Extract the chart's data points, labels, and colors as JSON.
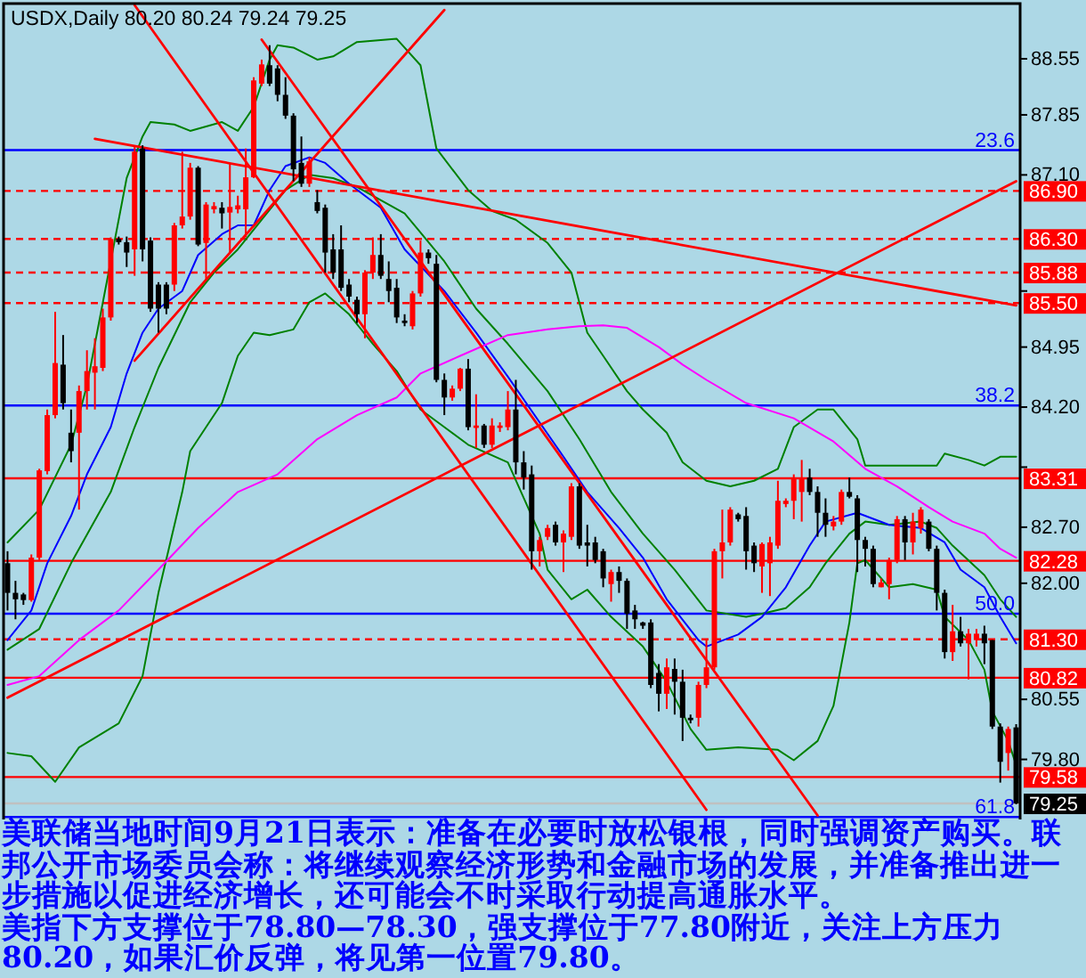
{
  "chart_data": {
    "type": "candlestick",
    "title": "USDX,Daily  80.20 80.24 79.24 79.25",
    "annotations": [
      "美联储当地时间9月21日表示：准备在必要时放松银根，同时强调资产购买。联邦公开市场委员会称：将继续观察经济形势和金融市场的发展，并准备推出进一步措施以促进经济增长，还可能会不时采取行动提高通胀水平。",
      "美指下方支撑位于78.80—78.30，强支撑位于77.80附近，关注上方压力80.20，如果汇价反弹，将见第一位置79.80。",
      {
        "text": "23.6",
        "y": 87.41
      },
      {
        "text": "38.2",
        "y": 84.22
      },
      {
        "text": "50.0",
        "y": 81.62
      },
      {
        "text": "61.8",
        "y": 79.08
      }
    ],
    "categories": [
      null,
      null,
      null,
      null,
      null,
      null,
      null,
      null,
      null,
      null,
      null,
      null,
      null,
      null,
      null,
      null,
      null,
      null,
      null,
      null,
      null,
      null,
      null,
      null,
      null,
      null,
      null,
      null,
      null,
      null,
      null,
      null,
      null,
      null,
      null,
      null,
      null,
      null,
      null,
      null,
      null,
      null,
      null,
      null,
      null,
      null,
      null,
      null,
      null,
      null,
      null,
      null,
      null,
      null,
      null,
      null,
      null,
      null,
      null,
      null,
      null,
      null,
      null,
      null,
      null,
      null,
      null,
      null,
      null,
      null,
      null,
      null,
      null,
      null,
      null,
      null,
      null,
      null,
      null,
      null,
      null,
      null,
      null,
      null,
      null,
      null,
      null,
      null,
      null,
      null,
      null,
      null,
      null,
      null,
      null,
      null,
      null,
      null,
      null,
      null,
      null,
      null,
      null,
      null,
      null,
      null,
      null,
      null,
      null,
      null,
      null,
      null,
      null,
      null,
      null,
      null,
      null,
      null,
      null,
      null,
      null,
      null,
      null,
      null,
      null,
      null,
      null,
      null
    ],
    "ohlc": [
      [
        82.25,
        82.4,
        81.66,
        81.88
      ],
      [
        81.88,
        82.03,
        81.55,
        81.8
      ],
      [
        81.86,
        81.88,
        81.73,
        81.79
      ],
      [
        81.79,
        82.36,
        81.77,
        82.32
      ],
      [
        82.32,
        83.43,
        82.29,
        83.41
      ],
      [
        83.4,
        84.17,
        83.36,
        84.1
      ],
      [
        84.1,
        85.39,
        84.06,
        84.75
      ],
      [
        84.73,
        85.1,
        84.17,
        84.25
      ],
      [
        83.88,
        84.17,
        83.51,
        83.65
      ],
      [
        83.88,
        84.47,
        82.92,
        84.4
      ],
      [
        84.4,
        84.91,
        84.17,
        84.65
      ],
      [
        84.63,
        85.06,
        84.17,
        84.71
      ],
      [
        84.69,
        85.43,
        84.65,
        85.32
      ],
      [
        85.32,
        86.32,
        85.28,
        86.3
      ],
      [
        86.3,
        86.33,
        86.23,
        86.26
      ],
      [
        86.26,
        86.33,
        85.95,
        86.13
      ],
      [
        86.17,
        87.47,
        85.84,
        87.39
      ],
      [
        87.43,
        87.47,
        86.02,
        86.17
      ],
      [
        86.28,
        86.32,
        85.39,
        85.43
      ],
      [
        85.73,
        85.76,
        85.13,
        85.43
      ],
      [
        85.73,
        85.76,
        85.36,
        85.43
      ],
      [
        85.73,
        86.5,
        85.65,
        86.47
      ],
      [
        86.47,
        87.39,
        86.43,
        86.58
      ],
      [
        86.58,
        87.25,
        86.54,
        87.19
      ],
      [
        87.19,
        87.21,
        86.21,
        86.23
      ],
      [
        86.25,
        86.76,
        85.8,
        86.73
      ],
      [
        86.67,
        86.76,
        86.62,
        86.71
      ],
      [
        86.69,
        86.76,
        86.43,
        86.62
      ],
      [
        86.63,
        87.25,
        86.13,
        86.7
      ],
      [
        86.67,
        86.84,
        86.62,
        86.72
      ],
      [
        86.67,
        87.43,
        86.32,
        87.07
      ],
      [
        87.07,
        88.32,
        87.06,
        88.28
      ],
      [
        88.24,
        88.54,
        88.21,
        88.48
      ],
      [
        88.47,
        88.72,
        88.21,
        88.24
      ],
      [
        88.43,
        88.47,
        88.02,
        88.1
      ],
      [
        88.1,
        88.32,
        87.8,
        87.84
      ],
      [
        87.84,
        87.87,
        87.02,
        87.17
      ],
      [
        87.25,
        87.58,
        86.95,
        86.99
      ],
      [
        86.99,
        87.32,
        86.95,
        87.27
      ],
      [
        86.76,
        86.91,
        86.62,
        86.65
      ],
      [
        86.69,
        86.73,
        85.88,
        86.13
      ],
      [
        86.17,
        86.36,
        85.8,
        85.88
      ],
      [
        86.17,
        86.47,
        85.65,
        85.69
      ],
      [
        85.73,
        85.8,
        85.51,
        85.58
      ],
      [
        85.54,
        85.58,
        85.25,
        85.36
      ],
      [
        85.36,
        85.91,
        85.06,
        85.88
      ],
      [
        85.88,
        86.32,
        85.8,
        86.1
      ],
      [
        86.1,
        86.36,
        85.8,
        85.84
      ],
      [
        85.8,
        86.02,
        85.51,
        85.65
      ],
      [
        85.69,
        85.8,
        85.25,
        85.32
      ],
      [
        85.28,
        85.36,
        85.21,
        85.25
      ],
      [
        85.21,
        85.65,
        85.17,
        85.62
      ],
      [
        85.62,
        86.28,
        85.58,
        86.13
      ],
      [
        86.13,
        86.17,
        85.99,
        86.06
      ],
      [
        85.99,
        86.1,
        84.51,
        84.54
      ],
      [
        84.54,
        84.62,
        84.1,
        84.32
      ],
      [
        84.32,
        84.47,
        84.28,
        84.43
      ],
      [
        84.43,
        84.69,
        84.4,
        84.68
      ],
      [
        84.68,
        84.8,
        83.91,
        83.95
      ],
      [
        83.94,
        84.36,
        83.69,
        83.97
      ],
      [
        83.97,
        83.99,
        83.69,
        83.73
      ],
      [
        83.73,
        84.06,
        83.69,
        83.97
      ],
      [
        83.94,
        84.01,
        83.89,
        83.97
      ],
      [
        83.95,
        84.4,
        83.91,
        84.17
      ],
      [
        84.17,
        84.54,
        83.36,
        83.51
      ],
      [
        83.51,
        83.65,
        83.17,
        83.32
      ],
      [
        83.36,
        83.47,
        82.17,
        82.4
      ],
      [
        82.4,
        82.58,
        82.21,
        82.54
      ],
      [
        82.58,
        82.73,
        82.54,
        82.69
      ],
      [
        82.73,
        82.77,
        82.47,
        82.51
      ],
      [
        82.51,
        82.66,
        82.14,
        82.62
      ],
      [
        82.58,
        83.25,
        82.54,
        83.21
      ],
      [
        83.21,
        83.25,
        82.43,
        82.47
      ],
      [
        82.51,
        82.73,
        82.21,
        82.47
      ],
      [
        82.51,
        82.58,
        82.25,
        82.29
      ],
      [
        82.4,
        82.43,
        81.95,
        82.06
      ],
      [
        81.99,
        82.17,
        81.77,
        82.14
      ],
      [
        82.14,
        82.21,
        81.88,
        82.03
      ],
      [
        82.03,
        82.06,
        81.43,
        81.62
      ],
      [
        81.66,
        81.73,
        81.43,
        81.55
      ],
      [
        81.51,
        81.52,
        81.43,
        81.47
      ],
      [
        81.51,
        81.55,
        80.69,
        80.73
      ],
      [
        80.88,
        80.99,
        80.4,
        80.62
      ],
      [
        80.62,
        81.06,
        80.43,
        80.95
      ],
      [
        80.93,
        81.06,
        80.36,
        80.77
      ],
      [
        80.77,
        80.92,
        80.03,
        80.32
      ],
      [
        80.32,
        80.36,
        80.25,
        80.29
      ],
      [
        80.32,
        80.77,
        80.21,
        80.73
      ],
      [
        80.73,
        81.29,
        80.69,
        80.95
      ],
      [
        80.95,
        82.43,
        80.92,
        82.4
      ],
      [
        82.4,
        82.92,
        82.06,
        82.51
      ],
      [
        82.51,
        82.95,
        82.47,
        82.92
      ],
      [
        82.86,
        82.88,
        82.77,
        82.8
      ],
      [
        82.84,
        82.95,
        82.17,
        82.4
      ],
      [
        82.47,
        82.51,
        82.14,
        82.25
      ],
      [
        82.21,
        82.51,
        81.88,
        82.49
      ],
      [
        82.25,
        82.58,
        81.84,
        82.51
      ],
      [
        82.47,
        83.28,
        82.43,
        83.03
      ],
      [
        82.99,
        83.06,
        82.95,
        83.03
      ],
      [
        83.03,
        83.36,
        82.8,
        83.32
      ],
      [
        83.14,
        83.54,
        82.77,
        83.32
      ],
      [
        83.32,
        83.43,
        83.1,
        83.14
      ],
      [
        83.14,
        83.21,
        82.58,
        82.88
      ],
      [
        82.88,
        83.06,
        82.58,
        82.73
      ],
      [
        82.71,
        82.84,
        82.66,
        82.77
      ],
      [
        82.77,
        83.17,
        82.73,
        83.14
      ],
      [
        83.14,
        83.32,
        83.06,
        83.08
      ],
      [
        83.06,
        83.1,
        82.14,
        82.54
      ],
      [
        82.54,
        82.58,
        82.21,
        82.43
      ],
      [
        82.43,
        82.47,
        81.95,
        81.99
      ],
      [
        81.95,
        82.06,
        81.95,
        82.01
      ],
      [
        81.99,
        82.32,
        81.8,
        82.29
      ],
      [
        82.29,
        82.84,
        82.25,
        82.8
      ],
      [
        82.8,
        82.84,
        82.29,
        82.51
      ],
      [
        82.51,
        82.88,
        82.36,
        82.77
      ],
      [
        82.69,
        82.95,
        82.62,
        82.92
      ],
      [
        82.77,
        82.8,
        82.4,
        82.43
      ],
      [
        82.43,
        82.47,
        81.66,
        81.88
      ],
      [
        81.88,
        81.92,
        81.06,
        81.14
      ],
      [
        81.14,
        81.73,
        81.03,
        81.4
      ],
      [
        81.4,
        81.58,
        81.21,
        81.25
      ],
      [
        81.25,
        81.43,
        80.8,
        81.37
      ],
      [
        81.29,
        81.43,
        81.21,
        81.37
      ],
      [
        81.37,
        81.47,
        80.99,
        81.25
      ],
      [
        81.29,
        81.29,
        80.18,
        80.21
      ],
      [
        80.21,
        80.25,
        79.51,
        79.77
      ],
      [
        79.88,
        80.21,
        79.66,
        80.18
      ],
      [
        80.2,
        80.24,
        79.24,
        79.25
      ]
    ],
    "series": [
      {
        "type": "line",
        "color": "#008000",
        "values": [
          82.51,
          null,
          null,
          null,
          82.92,
          null,
          null,
          null,
          83.73,
          null,
          84.47,
          null,
          null,
          null,
          null,
          87.06,
          null,
          87.58,
          87.76,
          null,
          null,
          87.73,
          null,
          87.65,
          null,
          null,
          null,
          87.76,
          null,
          87.65,
          null,
          87.95,
          null,
          88.54,
          88.72,
          null,
          88.69,
          null,
          null,
          88.54,
          null,
          88.58,
          null,
          null,
          88.76,
          null,
          null,
          null,
          null,
          88.8,
          null,
          null,
          88.47,
          null,
          87.43,
          null,
          null,
          null,
          86.91,
          null,
          null,
          86.65,
          null,
          null,
          86.54,
          null,
          null,
          null,
          86.25,
          null,
          null,
          85.88,
          null,
          85.13,
          null,
          84.84,
          null,
          null,
          84.4,
          null,
          84.17,
          null,
          null,
          83.88,
          null,
          83.51,
          null,
          null,
          83.28,
          null,
          null,
          83.21,
          null,
          null,
          83.28,
          null,
          null,
          83.43,
          null,
          83.95,
          null,
          null,
          84.17,
          null,
          84.17,
          null,
          null,
          83.8,
          83.47,
          null,
          null,
          null,
          null,
          null,
          null,
          null,
          null,
          83.47,
          83.62,
          null,
          null,
          83.54,
          null,
          83.47,
          null,
          83.58,
          null,
          83.58
        ]
      },
      {
        "type": "line",
        "color": "#008000",
        "values": [
          79.88,
          null,
          null,
          79.84,
          null,
          null,
          79.52,
          null,
          null,
          79.95,
          null,
          null,
          null,
          null,
          80.25,
          null,
          null,
          80.84,
          null,
          81.88,
          null,
          null,
          83.14,
          83.65,
          null,
          null,
          null,
          84.25,
          null,
          84.84,
          null,
          85.13,
          null,
          85.1,
          null,
          null,
          85.17,
          null,
          85.51,
          null,
          85.62,
          null,
          null,
          85.36,
          null,
          null,
          84.99,
          null,
          null,
          84.65,
          null,
          null,
          84.17,
          null,
          null,
          83.95,
          null,
          null,
          83.73,
          null,
          null,
          null,
          null,
          83.51,
          null,
          null,
          null,
          82.62,
          82.17,
          null,
          null,
          81.8,
          null,
          81.92,
          null,
          null,
          81.58,
          null,
          null,
          null,
          81.21,
          null,
          null,
          80.77,
          null,
          null,
          80.18,
          null,
          79.92,
          null,
          null,
          null,
          79.95,
          null,
          null,
          null,
          null,
          79.92,
          null,
          79.79,
          null,
          null,
          80.03,
          null,
          80.47,
          null,
          81.51,
          82.25,
          82.29,
          null,
          null,
          81.95,
          null,
          null,
          81.99,
          null,
          null,
          81.92,
          81.58,
          null,
          null,
          81.29,
          null,
          80.92,
          80.4,
          null,
          80.03,
          79.73
        ]
      },
      {
        "type": "line",
        "color": "#008000",
        "values": [
          81.17,
          null,
          null,
          null,
          81.43,
          null,
          null,
          null,
          82.25,
          null,
          null,
          null,
          null,
          83.14,
          null,
          null,
          83.95,
          null,
          null,
          84.69,
          null,
          null,
          null,
          85.51,
          null,
          null,
          85.88,
          null,
          null,
          86.17,
          null,
          null,
          null,
          null,
          null,
          86.91,
          null,
          null,
          87.1,
          null,
          null,
          87.06,
          null,
          null,
          86.95,
          null,
          null,
          null,
          null,
          null,
          86.62,
          null,
          null,
          null,
          null,
          86.02,
          null,
          null,
          null,
          85.43,
          null,
          null,
          null,
          84.99,
          null,
          null,
          null,
          null,
          84.4,
          null,
          null,
          null,
          83.8,
          null,
          null,
          null,
          83.14,
          null,
          null,
          null,
          82.62,
          null,
          null,
          null,
          82.17,
          null,
          null,
          null,
          81.66,
          null,
          null,
          null,
          null,
          81.58,
          null,
          81.62,
          null,
          null,
          81.69,
          null,
          null,
          81.95,
          null,
          82.25,
          null,
          null,
          82.62,
          null,
          82.77,
          null,
          null,
          82.73,
          null,
          null,
          null,
          82.77,
          null,
          82.69,
          null,
          82.47,
          null,
          null,
          null,
          82.1,
          null,
          81.8,
          null,
          81.58
        ]
      },
      {
        "type": "line",
        "color": "#0000ff",
        "values": [
          81.29,
          null,
          null,
          81.66,
          null,
          82.25,
          null,
          null,
          82.84,
          null,
          83.36,
          null,
          null,
          83.95,
          null,
          84.62,
          null,
          85.13,
          null,
          85.43,
          null,
          null,
          85.65,
          null,
          86.1,
          null,
          null,
          86.36,
          null,
          86.47,
          null,
          86.47,
          null,
          86.91,
          null,
          87.21,
          null,
          null,
          87.32,
          null,
          87.25,
          null,
          null,
          86.99,
          null,
          null,
          null,
          86.69,
          null,
          null,
          86.17,
          null,
          null,
          null,
          null,
          85.65,
          null,
          null,
          null,
          85.13,
          null,
          null,
          null,
          84.58,
          null,
          null,
          null,
          null,
          null,
          null,
          83.58,
          null,
          null,
          83.14,
          null,
          null,
          null,
          82.69,
          null,
          null,
          82.32,
          null,
          null,
          81.8,
          null,
          null,
          null,
          81.29,
          81.21,
          null,
          null,
          null,
          81.36,
          null,
          null,
          81.58,
          null,
          null,
          81.95,
          null,
          null,
          82.47,
          null,
          82.77,
          null,
          null,
          null,
          82.88,
          null,
          null,
          null,
          82.73,
          null,
          null,
          null,
          82.69,
          null,
          null,
          82.51,
          null,
          82.17,
          null,
          null,
          81.95,
          null,
          81.58,
          null,
          81.25
        ]
      },
      {
        "type": "line",
        "color": "#ff00ff",
        "values": [
          80.73,
          null,
          null,
          null,
          80.84,
          null,
          null,
          null,
          null,
          81.29,
          null,
          null,
          null,
          null,
          81.66,
          null,
          null,
          null,
          null,
          82.17,
          null,
          null,
          null,
          null,
          82.69,
          null,
          null,
          null,
          null,
          83.14,
          null,
          null,
          null,
          null,
          83.36,
          null,
          null,
          null,
          null,
          83.8,
          null,
          null,
          null,
          null,
          84.1,
          null,
          null,
          null,
          null,
          84.32,
          null,
          null,
          84.62,
          null,
          null,
          null,
          null,
          84.84,
          null,
          null,
          null,
          null,
          null,
          85.1,
          null,
          null,
          null,
          null,
          85.17,
          null,
          null,
          null,
          85.21,
          null,
          null,
          85.22,
          null,
          null,
          85.19,
          null,
          null,
          null,
          84.95,
          null,
          null,
          84.73,
          null,
          null,
          84.54,
          null,
          null,
          null,
          null,
          84.25,
          null,
          null,
          null,
          null,
          null,
          84.06,
          null,
          null,
          null,
          null,
          83.77,
          null,
          null,
          null,
          83.43,
          null,
          null,
          null,
          83.21,
          null,
          null,
          null,
          82.95,
          null,
          null,
          82.77,
          null,
          null,
          null,
          82.62,
          null,
          82.43,
          null,
          82.32
        ]
      },
      {
        "type": "line",
        "color": "#ff0000",
        "values": [
          null,
          null,
          null,
          null,
          null,
          null,
          null,
          null,
          null,
          null,
          null,
          null,
          null,
          null,
          null,
          null,
          89.22,
          null,
          null,
          null,
          null,
          null,
          null,
          null,
          null,
          null,
          null,
          null,
          null,
          null,
          null,
          null,
          null,
          null,
          null,
          null,
          null,
          null,
          null,
          null,
          null,
          null,
          null,
          null,
          null,
          null,
          null,
          null,
          null,
          null,
          null,
          null,
          null,
          null,
          null,
          null,
          null,
          null,
          null,
          null,
          null,
          null,
          null,
          null,
          null,
          null,
          null,
          null,
          null,
          null,
          null,
          null,
          null,
          null,
          null,
          null,
          null,
          null,
          null,
          null,
          null,
          null,
          null,
          null,
          null,
          null,
          null,
          null,
          79.17,
          null,
          null,
          null,
          null,
          null,
          null,
          null,
          null,
          null,
          null,
          null,
          null,
          null,
          null,
          null,
          null,
          null,
          null,
          null,
          null,
          null,
          null,
          null,
          null,
          null,
          null,
          null,
          null,
          null,
          null,
          null,
          null,
          null,
          null,
          null,
          null,
          null,
          null,
          null
        ]
      },
      {
        "type": "line",
        "color": "#ff0000",
        "values": [
          null,
          null,
          null,
          null,
          null,
          null,
          null,
          null,
          null,
          null,
          null,
          null,
          null,
          null,
          null,
          null,
          null,
          null,
          null,
          null,
          null,
          null,
          null,
          null,
          null,
          null,
          null,
          null,
          null,
          null,
          null,
          null,
          88.79,
          null,
          null,
          null,
          null,
          null,
          null,
          null,
          null,
          null,
          null,
          null,
          null,
          null,
          null,
          null,
          null,
          null,
          null,
          null,
          null,
          null,
          null,
          null,
          null,
          null,
          null,
          null,
          null,
          null,
          null,
          null,
          null,
          null,
          null,
          null,
          null,
          null,
          null,
          null,
          null,
          null,
          null,
          null,
          null,
          null,
          null,
          null,
          null,
          null,
          null,
          null,
          null,
          null,
          null,
          null,
          null,
          null,
          null,
          null,
          null,
          null,
          null,
          null,
          null,
          null,
          null,
          null,
          null,
          null,
          79.1,
          null,
          null,
          null,
          null,
          null,
          null,
          null,
          null,
          null,
          null,
          null,
          null,
          null,
          null,
          null,
          null,
          null,
          null,
          null,
          null,
          null,
          null,
          null,
          null,
          null
        ]
      },
      {
        "type": "line",
        "color": "#ff0000",
        "values": [
          null,
          null,
          null,
          null,
          null,
          null,
          null,
          null,
          null,
          null,
          null,
          87.55,
          null,
          null,
          null,
          null,
          null,
          null,
          null,
          null,
          null,
          null,
          null,
          null,
          null,
          null,
          null,
          null,
          null,
          null,
          null,
          null,
          null,
          null,
          null,
          null,
          null,
          null,
          null,
          null,
          null,
          null,
          null,
          null,
          null,
          null,
          null,
          null,
          null,
          null,
          null,
          null,
          null,
          null,
          null,
          null,
          null,
          null,
          null,
          null,
          null,
          null,
          null,
          null,
          null,
          null,
          null,
          null,
          null,
          null,
          null,
          null,
          null,
          null,
          null,
          null,
          null,
          null,
          null,
          null,
          null,
          null,
          null,
          null,
          null,
          null,
          null,
          null,
          null,
          null,
          null,
          null,
          null,
          null,
          null,
          null,
          null,
          null,
          null,
          null,
          null,
          null,
          null,
          null,
          null,
          null,
          null,
          null,
          null,
          null,
          null,
          null,
          null,
          null,
          null,
          null,
          null,
          null,
          null,
          null,
          null,
          null,
          null,
          null,
          null,
          null,
          null,
          85.47
        ]
      },
      {
        "type": "line",
        "color": "#ff0000",
        "values": [
          null,
          null,
          null,
          null,
          null,
          null,
          null,
          null,
          null,
          null,
          null,
          null,
          null,
          null,
          null,
          null,
          84.78,
          null,
          null,
          null,
          null,
          null,
          null,
          null,
          null,
          null,
          null,
          null,
          null,
          null,
          null,
          null,
          null,
          null,
          null,
          null,
          null,
          null,
          null,
          null,
          null,
          null,
          null,
          null,
          null,
          null,
          null,
          null,
          null,
          null,
          null,
          null,
          null,
          null,
          null,
          89.16,
          null,
          null,
          null,
          null,
          null,
          null,
          null,
          null,
          null,
          null,
          null,
          null,
          null,
          null,
          null,
          null,
          null,
          null,
          null,
          null,
          null,
          null,
          null,
          null,
          null,
          null,
          null,
          null,
          null,
          null,
          null,
          null,
          null,
          null,
          null,
          null,
          null,
          null,
          null,
          null,
          null,
          null,
          null,
          null,
          null,
          null,
          null,
          null,
          null,
          null,
          null,
          null,
          null,
          null,
          null,
          null,
          null,
          null,
          null,
          null,
          null,
          null,
          null,
          null,
          null,
          null,
          null,
          null,
          null,
          null,
          null,
          null
        ]
      },
      {
        "type": "line",
        "color": "#ff0000",
        "values": [
          80.57,
          null,
          null,
          null,
          null,
          null,
          null,
          null,
          null,
          null,
          null,
          null,
          null,
          null,
          null,
          null,
          null,
          null,
          null,
          null,
          null,
          null,
          null,
          null,
          null,
          null,
          null,
          null,
          null,
          null,
          null,
          null,
          null,
          null,
          null,
          null,
          null,
          null,
          null,
          null,
          null,
          null,
          null,
          null,
          null,
          null,
          null,
          null,
          null,
          null,
          null,
          null,
          null,
          null,
          null,
          null,
          null,
          null,
          null,
          null,
          null,
          null,
          null,
          null,
          null,
          null,
          null,
          null,
          null,
          null,
          null,
          null,
          null,
          null,
          null,
          null,
          null,
          null,
          null,
          null,
          null,
          null,
          null,
          null,
          null,
          null,
          null,
          null,
          null,
          null,
          null,
          null,
          null,
          null,
          null,
          null,
          null,
          null,
          null,
          null,
          null,
          null,
          null,
          null,
          null,
          null,
          null,
          null,
          null,
          null,
          null,
          null,
          null,
          null,
          null,
          null,
          null,
          null,
          null,
          null,
          null,
          null,
          null,
          null,
          null,
          null,
          null,
          87.02
        ]
      }
    ],
    "ylim": [
      79.05,
      89.24
    ],
    "yticks": [
      88.55,
      87.85,
      {
        "value": 87.1,
        "label": "87.10"
      },
      {
        "value": 85.65,
        "label": null
      },
      84.95,
      {
        "value": 84.2,
        "label": "84.20"
      },
      {
        "value": 83.45,
        "label": null
      },
      {
        "value": 82.7,
        "label": "82.70"
      },
      {
        "value": 82.0,
        "label": "82.00"
      },
      80.55,
      {
        "value": 79.8,
        "label": "79.80"
      }
    ],
    "tick_labels": "y",
    "ref_lines": [
      {
        "axis": "y",
        "value": 86.9,
        "label": "86.90",
        "color": "#ff0000",
        "line_style": "dashed"
      },
      {
        "axis": "y",
        "value": 86.3,
        "label": "86.30",
        "color": "#ff0000",
        "line_style": "dashed"
      },
      {
        "axis": "y",
        "value": 85.88,
        "label": "85.88",
        "color": "#ff0000",
        "line_style": "dashed"
      },
      {
        "axis": "y",
        "value": 85.5,
        "label": "85.50",
        "color": "#ff0000",
        "line_style": "dashed"
      },
      {
        "axis": "y",
        "value": 83.31,
        "label": "83.31",
        "color": "#ff0000",
        "line_style": "solid"
      },
      {
        "axis": "y",
        "value": 82.28,
        "label": "82.28",
        "color": "#ff0000",
        "line_style": "solid"
      },
      {
        "axis": "y",
        "value": 81.3,
        "label": "81.30",
        "color": "#ff0000",
        "line_style": "dashed"
      },
      {
        "axis": "y",
        "value": 80.82,
        "label": "80.82",
        "color": "#ff0000",
        "line_style": "solid"
      },
      {
        "axis": "y",
        "value": 79.58,
        "label": "79.58",
        "color": "#ff0000",
        "line_style": "solid"
      },
      {
        "axis": "y",
        "value": 87.41,
        "color": "#0000ff",
        "line_style": "solid"
      },
      {
        "axis": "y",
        "value": 84.22,
        "color": "#0000ff",
        "line_style": "solid"
      },
      {
        "axis": "y",
        "value": 81.62,
        "color": "#0000ff",
        "line_style": "solid"
      },
      {
        "axis": "y",
        "value": 79.08,
        "color": "#0000ff",
        "line_style": "solid"
      },
      {
        "axis": "y",
        "value": 79.25,
        "label": "79.25",
        "color": "#c0c0c0",
        "line_style": "solid"
      }
    ]
  }
}
